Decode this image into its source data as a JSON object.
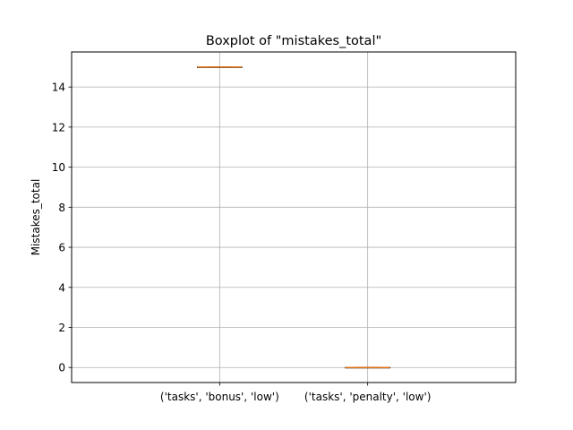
{
  "chart_data": {
    "type": "boxplot",
    "title": "Boxplot of \"mistakes_total\"",
    "xlabel": "",
    "ylabel": "Mistakes_total",
    "categories": [
      "('tasks', 'bonus', 'low')",
      "('tasks', 'penalty', 'low')"
    ],
    "boxes": [
      {
        "min": 15,
        "q1": 15,
        "median": 15,
        "q3": 15,
        "max": 15
      },
      {
        "min": 0,
        "q1": 0,
        "median": 0,
        "q3": 0,
        "max": 0
      }
    ],
    "ylim": [
      -0.75,
      15.75
    ],
    "yticks": [
      0,
      2,
      4,
      6,
      8,
      10,
      12,
      14
    ],
    "grid": true,
    "colors": {
      "box": "#000000",
      "median": "#ff7f0e",
      "grid": "#b0b0b0",
      "axes": "#000000"
    }
  }
}
